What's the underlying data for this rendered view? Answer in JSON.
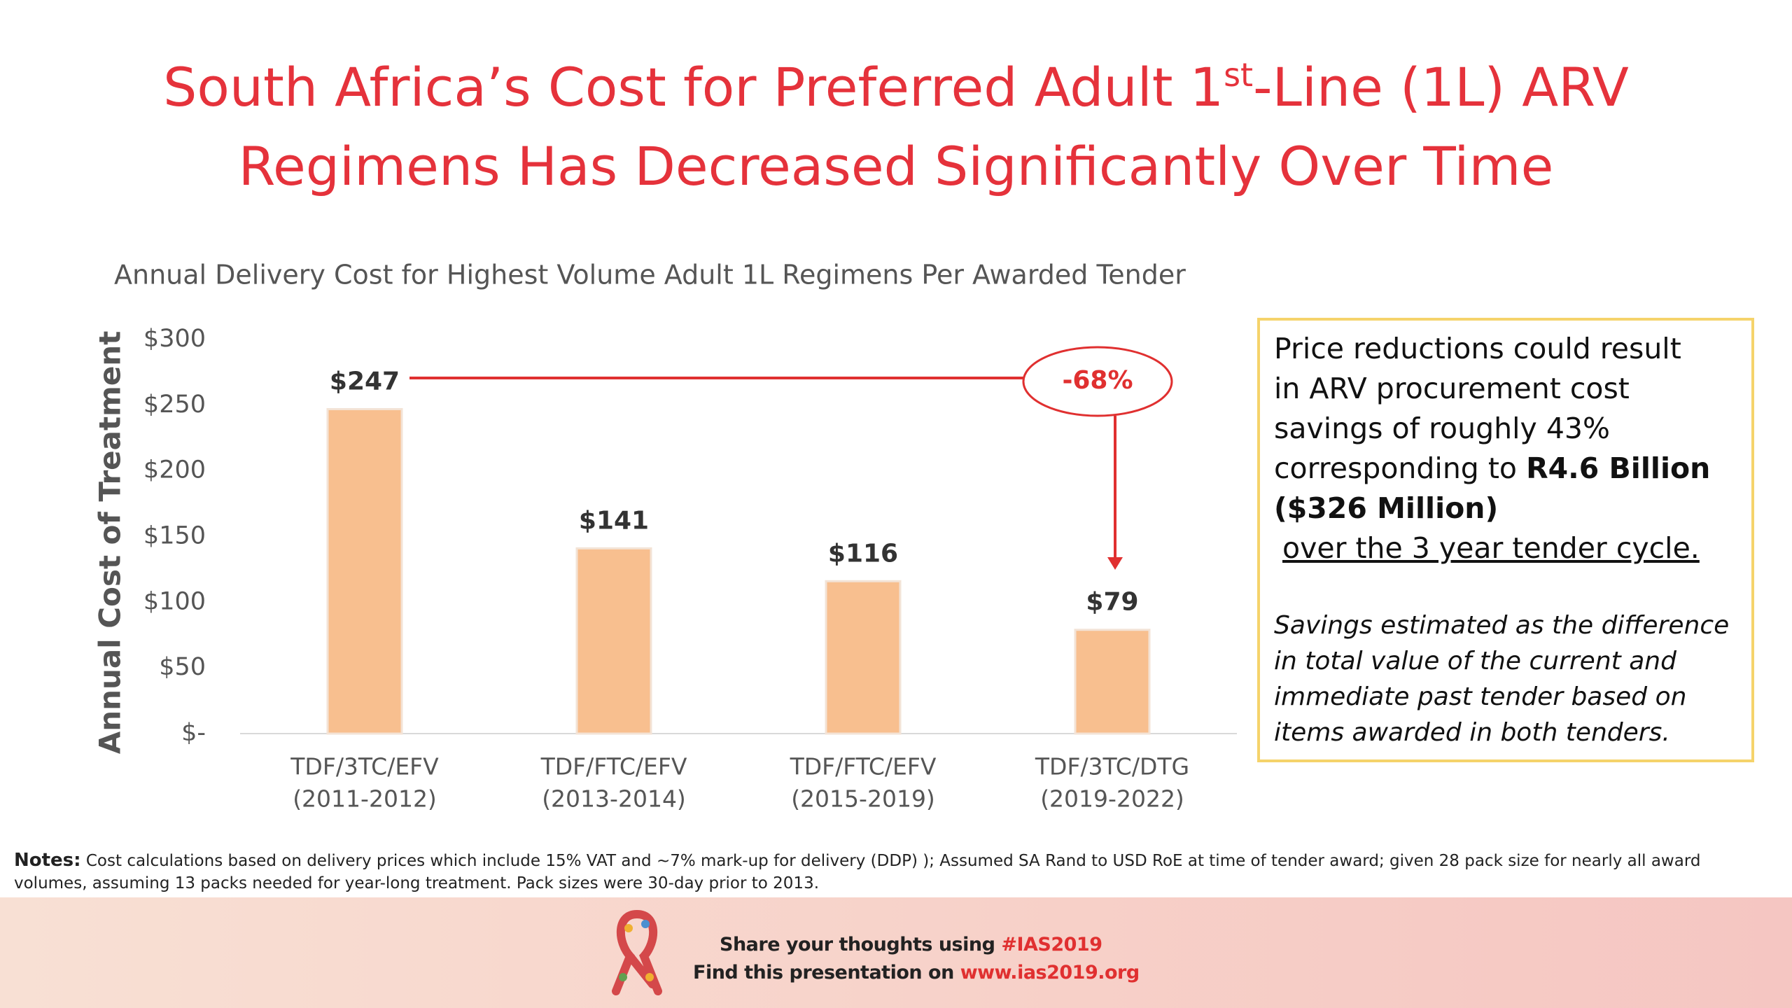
{
  "title": {
    "line1_a": "South Africa’s Cost for Preferred Adult 1",
    "line1_sup": "st",
    "line1_b": "-Line (1L) ARV",
    "line2": "Regimens Has Decreased Significantly Over Time"
  },
  "chart_data": {
    "type": "bar",
    "subtitle": "Annual Delivery Cost for Highest Volume Adult 1L Regimens Per Awarded Tender",
    "y_label": "Annual Cost of Treatment",
    "categories": [
      [
        "TDF/3TC/EFV",
        "(2011-2012)"
      ],
      [
        "TDF/FTC/EFV",
        "(2013-2014)"
      ],
      [
        "TDF/FTC/EFV",
        "(2015-2019)"
      ],
      [
        "TDF/3TC/DTG",
        "(2019-2022)"
      ]
    ],
    "values": [
      247,
      141,
      116,
      79
    ],
    "value_labels": [
      "$247",
      "$141",
      "$116",
      "$79"
    ],
    "color": "#f8bf8f",
    "ylim": [
      0,
      300
    ],
    "yticks": [
      {
        "value": 0,
        "label": "$-"
      },
      {
        "value": 50,
        "label": "$50"
      },
      {
        "value": 100,
        "label": "$100"
      },
      {
        "value": 150,
        "label": "$150"
      },
      {
        "value": 200,
        "label": "$200"
      },
      {
        "value": 250,
        "label": "$250"
      },
      {
        "value": 300,
        "label": "$300"
      }
    ],
    "grid": false,
    "annotation": "-68%"
  },
  "callout": {
    "lines": [
      "Price reductions could result",
      "in  ARV procurement cost",
      "savings of roughly 43%"
    ],
    "line4": "corresponding to ",
    "bold1": "R4.6 Billion",
    "bold2": "($326 Million)",
    "underlined": "over the 3 year tender cycle.",
    "note_lines": [
      "Savings estimated as the difference",
      "in total value of the current and",
      "immediate past tender based on",
      "items awarded in both tenders."
    ]
  },
  "notes": {
    "label": "Notes:",
    "line1": " Cost calculations based on delivery prices which include 15% VAT and ~7% mark-up for delivery (DDP) ); Assumed SA Rand to USD RoE at time of tender award; given 28 pack size for nearly all award",
    "line2": "volumes, assuming 13 packs needed for year-long treatment. Pack sizes were 30-day prior to 2013."
  },
  "footer": {
    "share": "Share your thoughts using ",
    "hashtag": "#IAS2019",
    "find": "Find this presentation on ",
    "url": "www.ias2019.org"
  }
}
